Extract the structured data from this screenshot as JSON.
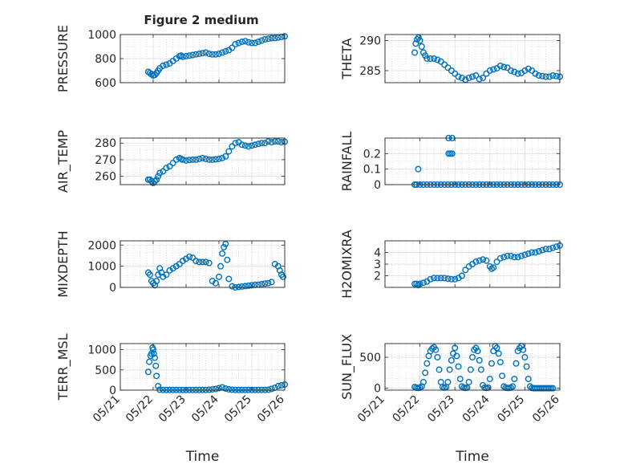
{
  "figure_title": "Figure 2 medium",
  "colors": {
    "marker": "#0072BD",
    "axis": "#262626",
    "grid": "#dedede",
    "minor_grid": "#c8c8c8"
  },
  "chart_data": [
    {
      "type": "scatter",
      "ylabel": "PRESSURE",
      "ylim": [
        600,
        1000
      ],
      "yticks": [
        600,
        800,
        1000
      ],
      "xlim": [
        0,
        5
      ],
      "xticks": [
        0,
        1,
        2,
        3,
        4,
        5
      ],
      "xticklabels": [],
      "x": [
        0.85,
        0.9,
        0.95,
        1.0,
        1.05,
        1.1,
        1.15,
        1.2,
        1.3,
        1.4,
        1.5,
        1.6,
        1.7,
        1.8,
        1.85,
        1.9,
        2.0,
        2.1,
        2.2,
        2.3,
        2.4,
        2.5,
        2.6,
        2.7,
        2.8,
        2.9,
        3.0,
        3.1,
        3.2,
        3.3,
        3.4,
        3.5,
        3.6,
        3.7,
        3.8,
        3.9,
        4.0,
        4.1,
        4.2,
        4.3,
        4.4,
        4.5,
        4.6,
        4.7,
        4.8,
        4.9,
        5.0
      ],
      "y": [
        690,
        680,
        670,
        660,
        665,
        680,
        700,
        720,
        740,
        750,
        760,
        780,
        800,
        820,
        825,
        815,
        820,
        825,
        830,
        835,
        840,
        845,
        850,
        840,
        835,
        835,
        840,
        850,
        860,
        870,
        890,
        920,
        930,
        940,
        945,
        935,
        930,
        930,
        940,
        950,
        960,
        965,
        970,
        970,
        975,
        980,
        985
      ]
    },
    {
      "type": "scatter",
      "ylabel": "THETA",
      "ylim": [
        283,
        291
      ],
      "yticks": [
        285,
        290
      ],
      "xlim": [
        0,
        5
      ],
      "xticks": [
        0,
        1,
        2,
        3,
        4,
        5
      ],
      "xticklabels": [],
      "x": [
        0.85,
        0.88,
        0.92,
        0.96,
        1.0,
        1.05,
        1.1,
        1.15,
        1.2,
        1.3,
        1.4,
        1.5,
        1.6,
        1.7,
        1.8,
        1.9,
        2.0,
        2.1,
        2.2,
        2.3,
        2.4,
        2.5,
        2.6,
        2.7,
        2.8,
        2.9,
        3.0,
        3.1,
        3.2,
        3.3,
        3.4,
        3.5,
        3.6,
        3.7,
        3.8,
        3.9,
        4.0,
        4.1,
        4.2,
        4.3,
        4.4,
        4.5,
        4.6,
        4.7,
        4.8,
        4.9,
        5.0
      ],
      "y": [
        288.0,
        289.5,
        290.2,
        290.5,
        290.0,
        289.0,
        288.0,
        287.5,
        287.0,
        287.0,
        287.0,
        286.8,
        286.5,
        286.0,
        285.5,
        285.0,
        284.5,
        284.0,
        283.8,
        283.5,
        283.8,
        284.0,
        284.2,
        283.6,
        283.8,
        284.5,
        285.0,
        285.2,
        285.4,
        285.8,
        285.6,
        285.5,
        285.0,
        284.8,
        284.5,
        284.6,
        285.0,
        285.3,
        285.0,
        284.5,
        284.2,
        284.1,
        284.0,
        284.0,
        284.2,
        284.1,
        284.0
      ]
    },
    {
      "type": "scatter",
      "ylabel": "AIR_TEMP",
      "ylim": [
        255,
        283
      ],
      "yticks": [
        260,
        270,
        280
      ],
      "xlim": [
        0,
        5
      ],
      "xticks": [
        0,
        1,
        2,
        3,
        4,
        5
      ],
      "xticklabels": [],
      "x": [
        0.85,
        0.9,
        0.95,
        1.0,
        1.05,
        1.1,
        1.15,
        1.2,
        1.3,
        1.4,
        1.5,
        1.6,
        1.7,
        1.8,
        1.85,
        1.9,
        2.0,
        2.1,
        2.2,
        2.3,
        2.4,
        2.5,
        2.6,
        2.7,
        2.8,
        2.9,
        3.0,
        3.1,
        3.2,
        3.3,
        3.4,
        3.5,
        3.6,
        3.7,
        3.8,
        3.9,
        4.0,
        4.1,
        4.2,
        4.3,
        4.4,
        4.5,
        4.6,
        4.7,
        4.8,
        4.9,
        5.0
      ],
      "y": [
        258,
        258,
        257,
        256,
        257,
        258,
        260,
        262,
        263,
        265,
        266,
        268,
        270,
        271,
        270.5,
        270,
        269.5,
        269.8,
        270,
        270,
        270.5,
        271,
        270.5,
        270,
        270,
        270.2,
        270.5,
        271,
        272,
        275,
        278,
        280,
        280.5,
        279,
        278.5,
        278,
        278.5,
        279,
        279.5,
        280,
        280,
        281,
        280.5,
        281,
        281,
        280.5,
        280.8
      ]
    },
    {
      "type": "scatter",
      "ylabel": "RAINFALL",
      "ylim": [
        0,
        0.3
      ],
      "yticks": [
        0,
        0.1,
        0.2
      ],
      "xlim": [
        0,
        5
      ],
      "xticks": [
        0,
        1,
        2,
        3,
        4,
        5
      ],
      "xticklabels": [],
      "x": [
        0.85,
        0.9,
        1.0,
        1.1,
        1.2,
        1.3,
        1.4,
        1.5,
        1.6,
        1.7,
        1.8,
        1.9,
        2.0,
        2.1,
        2.2,
        2.3,
        2.4,
        2.5,
        2.6,
        2.7,
        2.8,
        2.9,
        3.0,
        3.1,
        3.2,
        3.3,
        3.4,
        3.5,
        3.6,
        3.7,
        3.8,
        3.9,
        4.0,
        4.1,
        4.2,
        4.3,
        4.4,
        4.5,
        4.6,
        4.7,
        4.8,
        4.9,
        5.0,
        0.95,
        1.82,
        1.87,
        1.92,
        1.82,
        1.92
      ],
      "y": [
        0,
        0,
        0,
        0,
        0,
        0,
        0,
        0,
        0,
        0,
        0,
        0,
        0,
        0,
        0,
        0,
        0,
        0,
        0,
        0,
        0,
        0,
        0,
        0,
        0,
        0,
        0,
        0,
        0,
        0,
        0,
        0,
        0,
        0,
        0,
        0,
        0,
        0,
        0,
        0,
        0,
        0,
        0,
        0.1,
        0.2,
        0.2,
        0.2,
        0.3,
        0.3
      ]
    },
    {
      "type": "scatter",
      "ylabel": "MIXDEPTH",
      "ylim": [
        0,
        2200
      ],
      "yticks": [
        0,
        1000,
        2000
      ],
      "xlim": [
        0,
        5
      ],
      "xticks": [
        0,
        1,
        2,
        3,
        4,
        5
      ],
      "xticklabels": [],
      "x": [
        0.85,
        0.9,
        0.95,
        1.0,
        1.05,
        1.1,
        1.15,
        1.2,
        1.25,
        1.3,
        1.4,
        1.5,
        1.6,
        1.7,
        1.8,
        1.9,
        2.0,
        2.1,
        2.2,
        2.3,
        2.4,
        2.5,
        2.6,
        2.7,
        2.8,
        2.9,
        3.0,
        3.05,
        3.1,
        3.15,
        3.2,
        3.25,
        3.3,
        3.4,
        3.5,
        3.6,
        3.7,
        3.8,
        3.9,
        4.0,
        4.1,
        4.2,
        4.3,
        4.4,
        4.5,
        4.6,
        4.7,
        4.8,
        4.85,
        4.9,
        4.95
      ],
      "y": [
        700,
        600,
        300,
        200,
        100,
        300,
        600,
        900,
        700,
        500,
        600,
        800,
        900,
        1000,
        1100,
        1250,
        1350,
        1450,
        1400,
        1250,
        1200,
        1200,
        1200,
        1150,
        300,
        200,
        500,
        1000,
        1600,
        1900,
        2050,
        1300,
        400,
        50,
        0,
        20,
        40,
        60,
        80,
        100,
        120,
        130,
        150,
        180,
        200,
        250,
        1100,
        1000,
        800,
        600,
        500
      ]
    },
    {
      "type": "scatter",
      "ylabel": "H2OMIXRA",
      "ylim": [
        1,
        5
      ],
      "yticks": [
        2,
        3,
        4
      ],
      "xlim": [
        0,
        5
      ],
      "xticks": [
        0,
        1,
        2,
        3,
        4,
        5
      ],
      "xticklabels": [],
      "x": [
        0.85,
        0.9,
        0.95,
        1.0,
        1.1,
        1.2,
        1.3,
        1.4,
        1.5,
        1.6,
        1.7,
        1.8,
        1.9,
        2.0,
        2.1,
        2.2,
        2.3,
        2.4,
        2.5,
        2.6,
        2.7,
        2.8,
        2.9,
        3.0,
        3.05,
        3.1,
        3.2,
        3.3,
        3.4,
        3.5,
        3.6,
        3.7,
        3.8,
        3.9,
        4.0,
        4.1,
        4.2,
        4.3,
        4.4,
        4.5,
        4.6,
        4.7,
        4.8,
        4.9,
        5.0
      ],
      "y": [
        1.3,
        1.3,
        1.2,
        1.3,
        1.4,
        1.5,
        1.7,
        1.8,
        1.8,
        1.8,
        1.8,
        1.75,
        1.7,
        1.7,
        1.8,
        2.0,
        2.5,
        2.8,
        3.0,
        3.2,
        3.3,
        3.4,
        3.3,
        2.8,
        2.6,
        2.7,
        3.2,
        3.5,
        3.6,
        3.7,
        3.7,
        3.6,
        3.6,
        3.7,
        3.8,
        3.9,
        4.0,
        4.0,
        4.1,
        4.2,
        4.3,
        4.3,
        4.4,
        4.5,
        4.6
      ]
    },
    {
      "type": "scatter",
      "ylabel": "TERR_MSL",
      "ylim": [
        0,
        1150
      ],
      "yticks": [
        0,
        500,
        1000
      ],
      "xlim": [
        0,
        5
      ],
      "xticks": [
        0,
        1,
        2,
        3,
        4,
        5
      ],
      "xticklabels": [
        "05/21",
        "05/22",
        "05/23",
        "05/24",
        "05/25",
        "05/26"
      ],
      "xlabel": "Time",
      "x": [
        0.85,
        0.88,
        0.92,
        0.95,
        0.98,
        1.0,
        1.02,
        1.05,
        1.08,
        1.1,
        1.15,
        1.2,
        1.3,
        1.4,
        1.5,
        1.6,
        1.7,
        1.8,
        1.9,
        2.0,
        2.1,
        2.2,
        2.3,
        2.4,
        2.5,
        2.6,
        2.7,
        2.8,
        2.9,
        3.0,
        3.1,
        3.2,
        3.3,
        3.4,
        3.5,
        3.6,
        3.7,
        3.8,
        3.9,
        4.0,
        4.1,
        4.2,
        4.3,
        4.4,
        4.5,
        4.6,
        4.7,
        4.8,
        4.9,
        5.0
      ],
      "y": [
        450,
        700,
        850,
        900,
        1050,
        1000,
        900,
        800,
        600,
        350,
        100,
        10,
        5,
        5,
        5,
        5,
        5,
        5,
        5,
        5,
        5,
        5,
        5,
        5,
        5,
        5,
        10,
        20,
        30,
        50,
        70,
        40,
        20,
        10,
        5,
        5,
        5,
        5,
        5,
        5,
        5,
        5,
        5,
        5,
        10,
        30,
        60,
        100,
        120,
        140
      ]
    },
    {
      "type": "scatter",
      "ylabel": "SUN_FLUX",
      "ylim": [
        -30,
        720
      ],
      "yticks": [
        0,
        500
      ],
      "xlim": [
        0,
        5
      ],
      "xticks": [
        0,
        1,
        2,
        3,
        4,
        5
      ],
      "xticklabels": [
        "05/21",
        "05/22",
        "05/23",
        "05/24",
        "05/25",
        "05/26"
      ],
      "xlabel": "Time",
      "x": [
        0.85,
        0.9,
        0.95,
        1.0,
        1.05,
        1.1,
        1.15,
        1.2,
        1.25,
        1.3,
        1.35,
        1.4,
        1.45,
        1.5,
        1.55,
        1.6,
        1.65,
        1.7,
        1.75,
        1.8,
        1.85,
        1.9,
        1.95,
        2.0,
        2.05,
        2.1,
        2.15,
        2.2,
        2.25,
        2.3,
        2.35,
        2.4,
        2.45,
        2.5,
        2.55,
        2.6,
        2.65,
        2.7,
        2.75,
        2.8,
        2.85,
        2.9,
        2.95,
        3.0,
        3.05,
        3.1,
        3.15,
        3.2,
        3.25,
        3.3,
        3.35,
        3.4,
        3.45,
        3.5,
        3.55,
        3.6,
        3.65,
        3.7,
        3.75,
        3.8,
        3.85,
        3.9,
        3.95,
        4.0,
        4.05,
        4.1,
        4.15,
        4.2,
        4.25,
        4.3,
        4.35,
        4.4,
        4.45,
        4.5,
        4.55,
        4.6,
        4.65,
        4.7,
        4.75,
        4.8
      ],
      "y": [
        20,
        10,
        5,
        10,
        30,
        100,
        250,
        400,
        520,
        600,
        640,
        660,
        620,
        500,
        300,
        100,
        20,
        10,
        20,
        100,
        300,
        450,
        560,
        650,
        520,
        350,
        150,
        30,
        10,
        5,
        10,
        100,
        300,
        500,
        620,
        650,
        600,
        450,
        300,
        50,
        10,
        5,
        10,
        150,
        400,
        600,
        680,
        650,
        560,
        420,
        200,
        30,
        10,
        5,
        5,
        10,
        30,
        150,
        400,
        600,
        650,
        680,
        620,
        500,
        350,
        150,
        30,
        5,
        0,
        0,
        0,
        0,
        0,
        0,
        0,
        0,
        0,
        0,
        0,
        0
      ]
    }
  ]
}
